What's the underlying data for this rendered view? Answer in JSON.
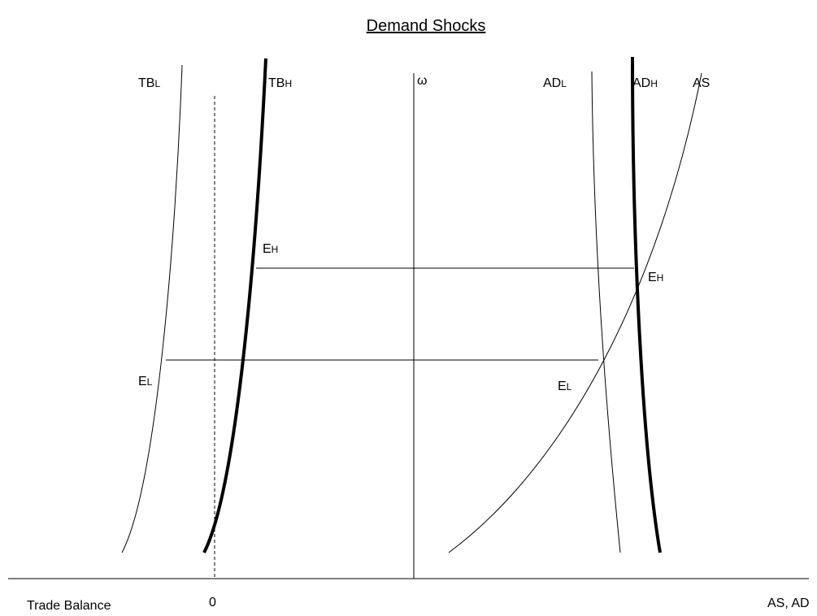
{
  "title": "Demand Shocks",
  "labels": [
    {
      "base": "TB",
      "sub": "L"
    },
    {
      "base": "TB",
      "sub": "H"
    },
    {
      "base": "ω"
    },
    {
      "base": "AD",
      "sub": "L"
    },
    {
      "base": "AD",
      "sub": "H"
    },
    {
      "base": "AS"
    },
    {
      "base": "E",
      "sub": "H"
    },
    {
      "base": "E",
      "sub": "H"
    },
    {
      "base": "E",
      "sub": "L"
    },
    {
      "base": "E",
      "sub": "L"
    }
  ],
  "axis": {
    "left_label": "Trade Balance",
    "zero_label": "0",
    "right_label": "AS, AD"
  }
}
